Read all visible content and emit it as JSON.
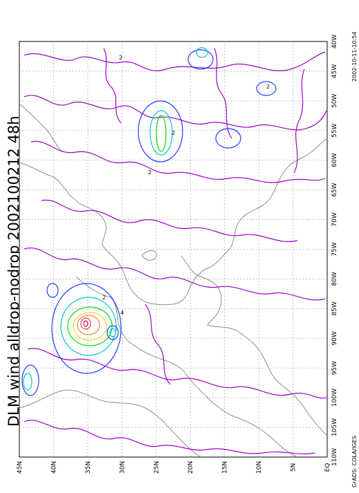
{
  "title": "DLM wind alldrop-nodrop 2002100212 48h",
  "timestamp": "2002-10-11-10:54",
  "credit": "GrADS: COLA/IGES",
  "lon_labels": [
    "40W",
    "45W",
    "50W",
    "55W",
    "60W",
    "65W",
    "70W",
    "75W",
    "80W",
    "85W",
    "90W",
    "95W",
    "100W",
    "105W",
    "110W"
  ],
  "lat_labels": [
    "45N",
    "40N",
    "35N",
    "30N",
    "25N",
    "20N",
    "15N",
    "10N",
    "5N",
    "EQ"
  ],
  "contour_labels": [
    "2",
    "4"
  ],
  "colors": {
    "level_1": "#a000c8",
    "level_2": "#1e3cff",
    "level_3": "#00c8c8",
    "level_4": "#00dc00",
    "level_5": "#e6dc32",
    "level_6": "#f08228",
    "level_7": "#fa3c3c",
    "coastline": "#8c8c8c",
    "grid": "#9a9a9a"
  }
}
